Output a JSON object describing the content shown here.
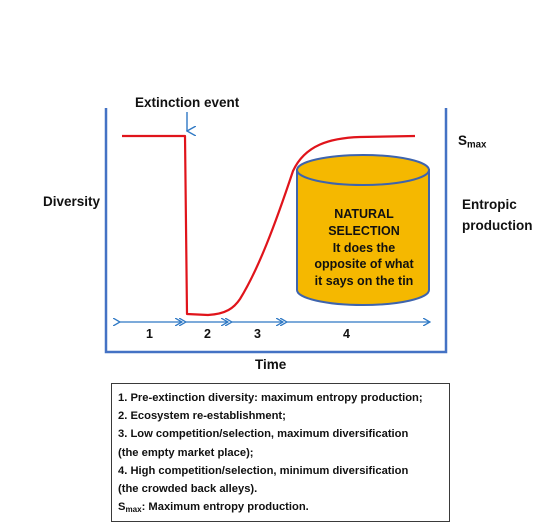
{
  "labels": {
    "extinction_event": "Extinction event",
    "diversity": "Diversity",
    "time": "Time",
    "smax_main": "S",
    "smax_sub": "max",
    "entropic_line1": "Entropic",
    "entropic_line2": "production"
  },
  "cylinder": {
    "lines": [
      "NATURAL",
      "SELECTION",
      "It does the",
      "opposite of what",
      "it says on the tin"
    ]
  },
  "phases": [
    "1",
    "2",
    "3",
    "4"
  ],
  "legend": {
    "items": [
      "1. Pre-extinction diversity: maximum entropy production;",
      "2. Ecosystem re-establishment;",
      "3. Low competition/selection, maximum diversification",
      "(the empty market place);",
      "4. High competition/selection, minimum diversification",
      "(the crowded back alleys)."
    ],
    "smax_main": "S",
    "smax_sub": "max",
    "smax_rest": ": Maximum entropy production."
  },
  "colors": {
    "frame": "#4472c4",
    "curve": "#e0141b",
    "cylinder_fill": "#f5b800",
    "cylinder_stroke": "#3e64ad",
    "arrow": "#2e78c4"
  }
}
